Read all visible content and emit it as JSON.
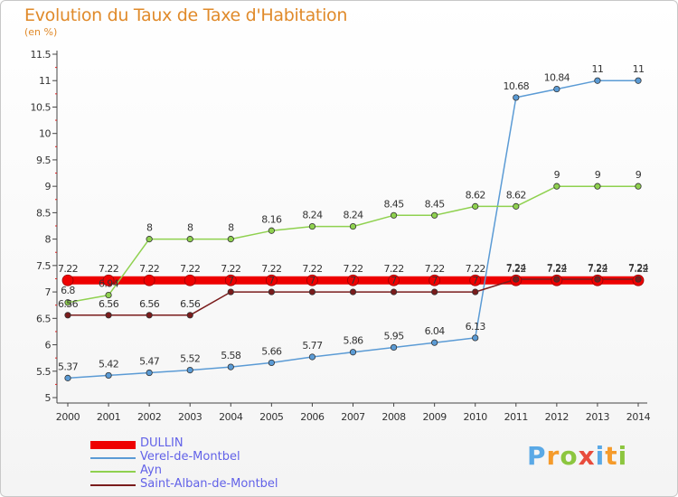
{
  "title": "Evolution du Taux de Taxe d'Habitation",
  "subtitle": "(en %)",
  "brand": {
    "letters": [
      "P",
      "r",
      "o",
      "x",
      "i",
      "t",
      "i"
    ],
    "colors": [
      "#5aa9e6",
      "#f59b2b",
      "#8cc63f",
      "#e84b3c",
      "#5aa9e6",
      "#f59b2b",
      "#8cc63f"
    ]
  },
  "chart_data": {
    "type": "line",
    "x": [
      "2000",
      "2001",
      "2002",
      "2003",
      "2004",
      "2005",
      "2006",
      "2007",
      "2008",
      "2009",
      "2010",
      "2011",
      "2012",
      "2013",
      "2014"
    ],
    "ylim": [
      5,
      11.5
    ],
    "yticks": [
      "5",
      "5.5",
      "6",
      "6.5",
      "7",
      "7.5",
      "8",
      "8.5",
      "9",
      "9.5",
      "10",
      "10.5",
      "11",
      "11.5"
    ],
    "legend_position": "bottom-left",
    "series": [
      {
        "name": "DULLIN",
        "color": "#ee0000",
        "values": [
          7.22,
          7.22,
          7.22,
          7.22,
          7.22,
          7.22,
          7.22,
          7.22,
          7.22,
          7.22,
          7.22,
          7.22,
          7.22,
          7.22,
          7.22
        ],
        "labels": [
          "7.22",
          "7.22",
          "7.22",
          "7.22",
          "7.22",
          "7.22",
          "7.22",
          "7.22",
          "7.22",
          "7.22",
          "7.22",
          "7.22",
          "7.22",
          "7.22",
          "7.22"
        ]
      },
      {
        "name": "Verel-de-Montbel",
        "color": "#5b9bd5",
        "values": [
          5.37,
          5.42,
          5.47,
          5.52,
          5.58,
          5.66,
          5.77,
          5.86,
          5.95,
          6.04,
          6.13,
          10.68,
          10.84,
          11,
          11
        ],
        "labels": [
          "5.37",
          "5.42",
          "5.47",
          "5.52",
          "5.58",
          "5.66",
          "5.77",
          "5.86",
          "5.95",
          "6.04",
          "6.13",
          "10.68",
          "10.84",
          "11",
          "11"
        ]
      },
      {
        "name": "Ayn",
        "color": "#8fd14f",
        "values": [
          6.8,
          6.94,
          8,
          8,
          8,
          8.16,
          8.24,
          8.24,
          8.45,
          8.45,
          8.62,
          8.62,
          9,
          9,
          9
        ],
        "labels": [
          "6.8",
          "6.94",
          "8",
          "8",
          "8",
          "8.16",
          "8.24",
          "8.24",
          "8.45",
          "8.45",
          "8.62",
          "8.62",
          "9",
          "9",
          "9"
        ]
      },
      {
        "name": "Saint-Alban-de-Montbel",
        "color": "#7a1c1c",
        "values": [
          6.56,
          6.56,
          6.56,
          6.56,
          7,
          7,
          7,
          7,
          7,
          7,
          7,
          7.24,
          7.24,
          7.24,
          7.24
        ],
        "labels": [
          "6.56",
          "6.56",
          "6.56",
          "6.56",
          "7",
          "7",
          "7",
          "7",
          "7",
          "7",
          "7",
          "7.24",
          "7.24",
          "7.24",
          "7.24"
        ]
      }
    ]
  }
}
